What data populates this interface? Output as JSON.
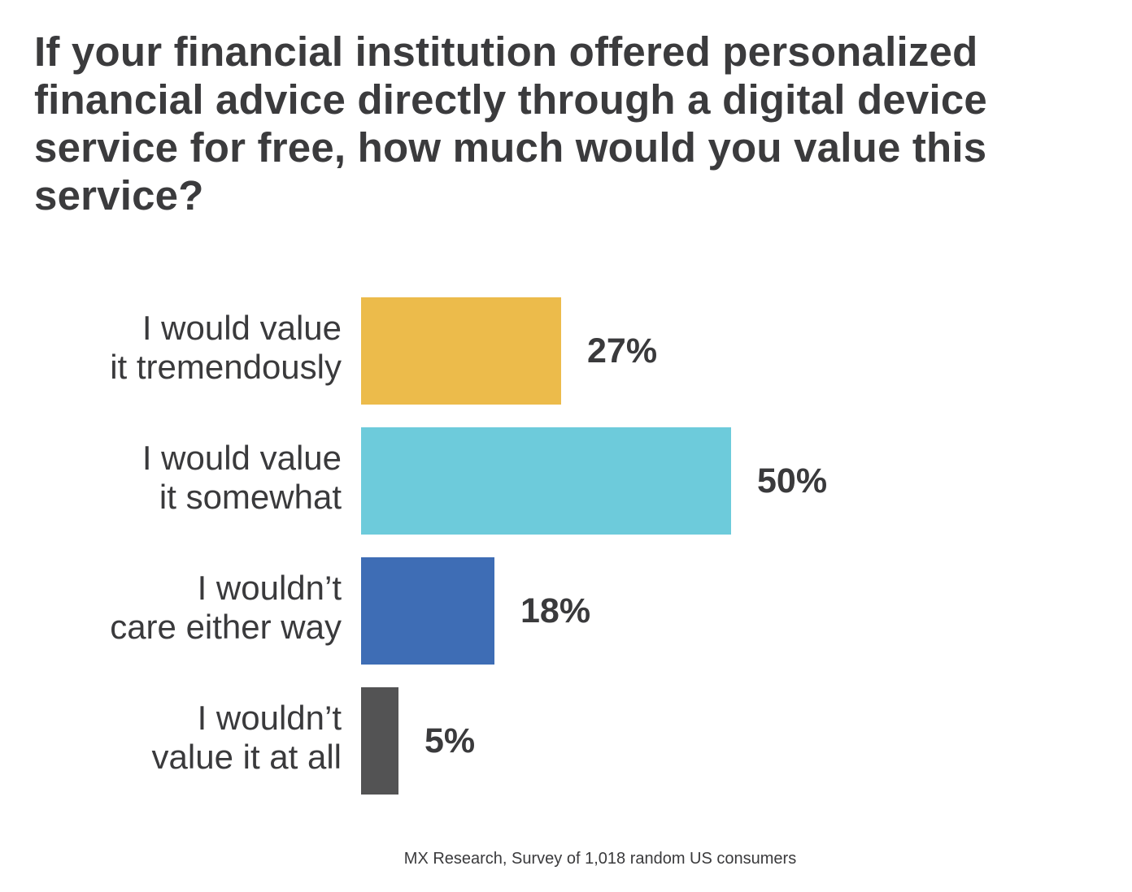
{
  "chart_data": {
    "type": "bar",
    "orientation": "horizontal",
    "title": "If your financial institution offered personalized financial advice directly through a digital device service for free, how much would you value this service?",
    "categories": [
      "I would value\nit tremendously",
      "I would value\nit somewhat",
      "I wouldn’t\ncare either way",
      "I wouldn’t\nvalue it at all"
    ],
    "values": [
      27,
      50,
      18,
      5
    ],
    "value_labels": [
      "27%",
      "50%",
      "18%",
      "5%"
    ],
    "colors": [
      "#ecbb4b",
      "#6dcbdb",
      "#3e6db5",
      "#535354"
    ],
    "xlim": [
      0,
      100
    ],
    "grid": false,
    "legend": "none",
    "xlabel": "",
    "ylabel": "",
    "source": "MX Research, Survey of 1,018 random US consumers"
  }
}
